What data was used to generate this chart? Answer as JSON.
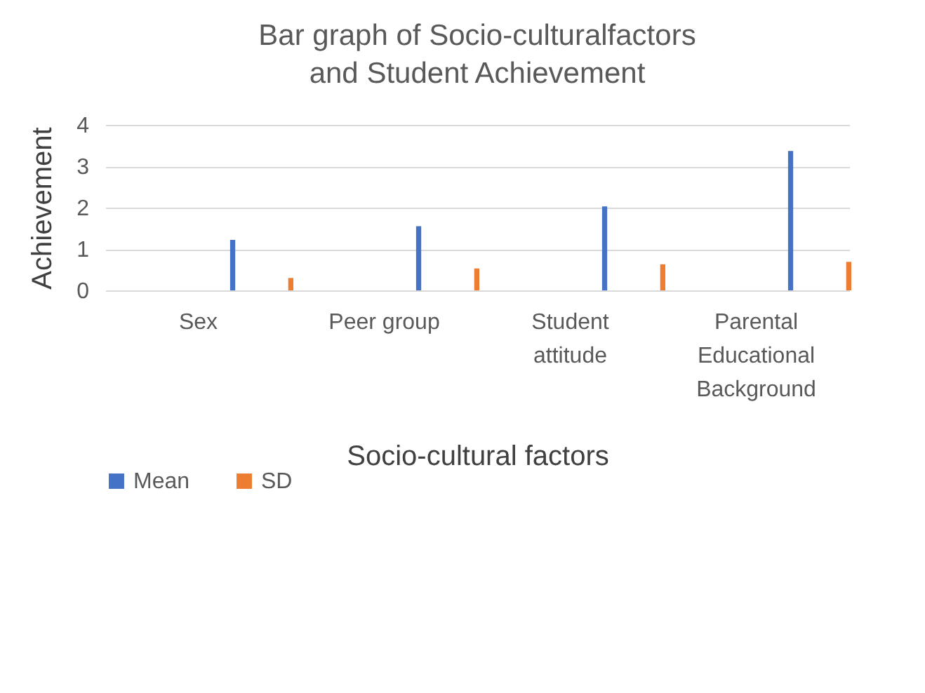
{
  "chart_data": {
    "type": "bar",
    "title": "Bar graph of Socio-culturalfactors and Student Achievement",
    "xlabel": "Socio-cultural factors",
    "ylabel": "Achievement",
    "categories": [
      "Sex",
      "Peer group",
      "Student attitude",
      "Parental Educational Background"
    ],
    "series": [
      {
        "name": "Mean",
        "color": "#4472c4",
        "values": [
          1.22,
          1.55,
          2.03,
          3.37
        ]
      },
      {
        "name": "SD",
        "color": "#ed7d31",
        "values": [
          0.3,
          0.53,
          0.63,
          0.69
        ]
      }
    ],
    "ylim": [
      0,
      4
    ],
    "yticks": [
      0,
      1,
      2,
      3,
      4
    ],
    "grid": "y",
    "legend": "bottom"
  }
}
